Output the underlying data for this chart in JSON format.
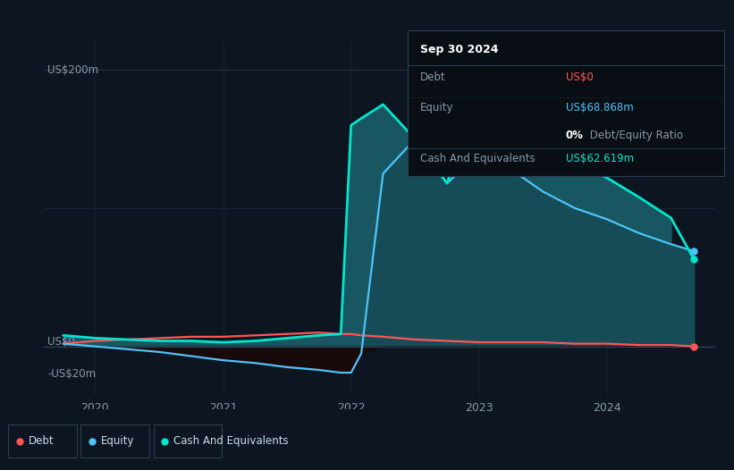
{
  "bg_color": "#0d1520",
  "plot_bg_color": "#0d1520",
  "debt_color": "#ff5555",
  "equity_color": "#4fc3f7",
  "cash_color": "#00e5cc",
  "fill_teal": "#1a5f6a",
  "text_color": "#8899aa",
  "white": "#ffffff",
  "label_200": "US$200m",
  "label_0": "US$0",
  "label_neg20": "-US$20m",
  "x_labels": [
    "2020",
    "2021",
    "2022",
    "2023",
    "2024"
  ],
  "x_positions": [
    2020,
    2021,
    2022,
    2023,
    2024
  ],
  "tooltip_title": "Sep 30 2024",
  "tt_debt_lbl": "Debt",
  "tt_debt_val": "US$0",
  "tt_eq_lbl": "Equity",
  "tt_eq_val": "US$68.868m",
  "tt_ratio_bold": "0%",
  "tt_ratio_rest": " Debt/Equity Ratio",
  "tt_cash_lbl": "Cash And Equivalents",
  "tt_cash_val": "US$62.619m",
  "legend": [
    "Debt",
    "Equity",
    "Cash And Equivalents"
  ],
  "t": [
    2019.75,
    2020.0,
    2020.25,
    2020.5,
    2020.75,
    2021.0,
    2021.25,
    2021.5,
    2021.75,
    2021.92,
    2022.0,
    2022.08,
    2022.25,
    2022.5,
    2022.75,
    2023.0,
    2023.25,
    2023.5,
    2023.75,
    2024.0,
    2024.25,
    2024.5,
    2024.68
  ],
  "debt_y": [
    2,
    4,
    5,
    6,
    7,
    7,
    8,
    9,
    10,
    9,
    9,
    8,
    7,
    5,
    4,
    3,
    3,
    3,
    2,
    2,
    1,
    1,
    0
  ],
  "equity_y": [
    2,
    0,
    -2,
    -4,
    -7,
    -10,
    -12,
    -15,
    -17,
    -19,
    -19,
    -5,
    125,
    150,
    118,
    140,
    128,
    112,
    100,
    92,
    82,
    74,
    69
  ],
  "cash_y": [
    8,
    6,
    5,
    4,
    4,
    3,
    4,
    6,
    8,
    9,
    160,
    165,
    175,
    150,
    118,
    188,
    162,
    148,
    132,
    122,
    108,
    93,
    63
  ],
  "ylim": [
    -35,
    220
  ],
  "xlim": [
    2019.6,
    2024.85
  ]
}
